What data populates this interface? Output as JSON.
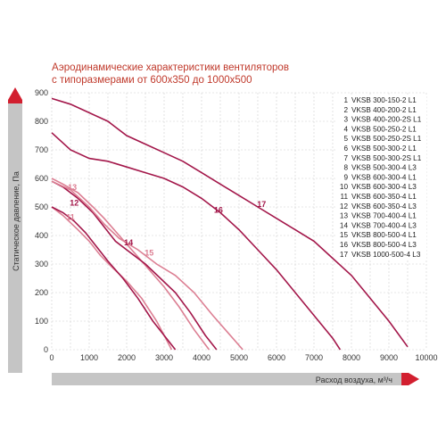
{
  "chart_data": {
    "type": "line",
    "title_lines": [
      "Аэродинамические характеристики вентиляторов",
      "с типоразмерами от 600x350 до 1000x500"
    ],
    "ylabel": "Статическое давление, Па",
    "xlabel": "Расход воздуха, м³/ч",
    "xlim": [
      0,
      10000
    ],
    "ylim": [
      0,
      900
    ],
    "x_ticks": [
      0,
      1000,
      2000,
      3000,
      4000,
      5000,
      6000,
      7000,
      8000,
      9000,
      10000
    ],
    "y_ticks": [
      0,
      100,
      200,
      300,
      400,
      500,
      600,
      700,
      800,
      900
    ],
    "grid": true,
    "legend_position": "right",
    "colors": {
      "dark": "#a3174a",
      "light": "#dc7f93",
      "axis_bar": "#c5c5c5",
      "axis_accent": "#d21f2f",
      "title": "#c0392b"
    },
    "legend": [
      {
        "num": "1",
        "label": "VKSB 300-150-2 L1"
      },
      {
        "num": "2",
        "label": "VKSB 400-200-2 L1"
      },
      {
        "num": "3",
        "label": "VKSB 400-200-2S L1"
      },
      {
        "num": "4",
        "label": "VKSB 500-250-2 L1"
      },
      {
        "num": "5",
        "label": "VKSB 500-250-2S L1"
      },
      {
        "num": "6",
        "label": "VKSB 500-300-2 L1"
      },
      {
        "num": "7",
        "label": "VKSB 500-300-2S L1"
      },
      {
        "num": "8",
        "label": "VKSB 500-300-4 L3"
      },
      {
        "num": "9",
        "label": "VKSB 600-300-4 L1"
      },
      {
        "num": "10",
        "label": "VKSB 600-300-4 L3"
      },
      {
        "num": "11",
        "label": "VKSB 600-350-4 L1"
      },
      {
        "num": "12",
        "label": "VKSB 600-350-4 L3"
      },
      {
        "num": "13",
        "label": "VKSB 700-400-4 L1"
      },
      {
        "num": "14",
        "label": "VKSB 700-400-4 L3"
      },
      {
        "num": "15",
        "label": "VKSB 800-500-4 L1"
      },
      {
        "num": "16",
        "label": "VKSB 800-500-4 L3"
      },
      {
        "num": "17",
        "label": "VKSB 1000-500-4 L3"
      }
    ],
    "series": [
      {
        "name": "11",
        "color": "light",
        "label": "11",
        "x": [
          0,
          300,
          700,
          1000,
          1300,
          1600,
          2000,
          2400,
          2800,
          3000,
          3200
        ],
        "y": [
          500,
          470,
          420,
          380,
          330,
          290,
          240,
          180,
          100,
          50,
          0
        ]
      },
      {
        "name": "12",
        "color": "dark",
        "label": "12",
        "x": [
          0,
          300,
          600,
          900,
          1200,
          1500,
          1900,
          2300,
          2700,
          3000,
          3300
        ],
        "y": [
          500,
          480,
          450,
          410,
          360,
          310,
          250,
          180,
          100,
          50,
          0
        ]
      },
      {
        "name": "13",
        "color": "light",
        "label": "13",
        "x": [
          0,
          300,
          700,
          1100,
          1400,
          1800,
          2200,
          2600,
          3000,
          3400,
          3800,
          4200
        ],
        "y": [
          600,
          580,
          550,
          500,
          460,
          400,
          340,
          280,
          220,
          150,
          70,
          0
        ]
      },
      {
        "name": "14",
        "color": "dark",
        "label": "14",
        "x": [
          0,
          300,
          700,
          1100,
          1400,
          1700,
          2100,
          2500,
          2900,
          3300,
          3700,
          4100,
          4400
        ],
        "y": [
          590,
          570,
          530,
          480,
          430,
          380,
          340,
          300,
          250,
          200,
          130,
          50,
          0
        ]
      },
      {
        "name": "15",
        "color": "light",
        "label": "15",
        "x": [
          0,
          500,
          1000,
          1400,
          1800,
          2300,
          2800,
          3300,
          3800,
          4300,
          4700,
          5100
        ],
        "y": [
          590,
          560,
          500,
          440,
          390,
          350,
          300,
          260,
          200,
          120,
          60,
          0
        ]
      },
      {
        "name": "16",
        "color": "dark",
        "label": "16",
        "x": [
          0,
          500,
          1000,
          1500,
          2000,
          2500,
          3000,
          3500,
          4000,
          4500,
          5000,
          5500,
          6000,
          6500,
          7000,
          7500,
          7700
        ],
        "y": [
          760,
          700,
          670,
          660,
          640,
          620,
          600,
          570,
          530,
          480,
          420,
          350,
          280,
          200,
          120,
          40,
          0
        ]
      },
      {
        "name": "17",
        "color": "dark",
        "label": "17",
        "x": [
          0,
          500,
          1000,
          1500,
          2000,
          2500,
          3000,
          3500,
          4000,
          4500,
          5000,
          5500,
          6000,
          6500,
          7000,
          7500,
          8000,
          8500,
          9000,
          9500
        ],
        "y": [
          880,
          860,
          830,
          800,
          750,
          720,
          690,
          660,
          620,
          580,
          540,
          500,
          460,
          420,
          380,
          320,
          260,
          180,
          100,
          10
        ]
      }
    ]
  }
}
